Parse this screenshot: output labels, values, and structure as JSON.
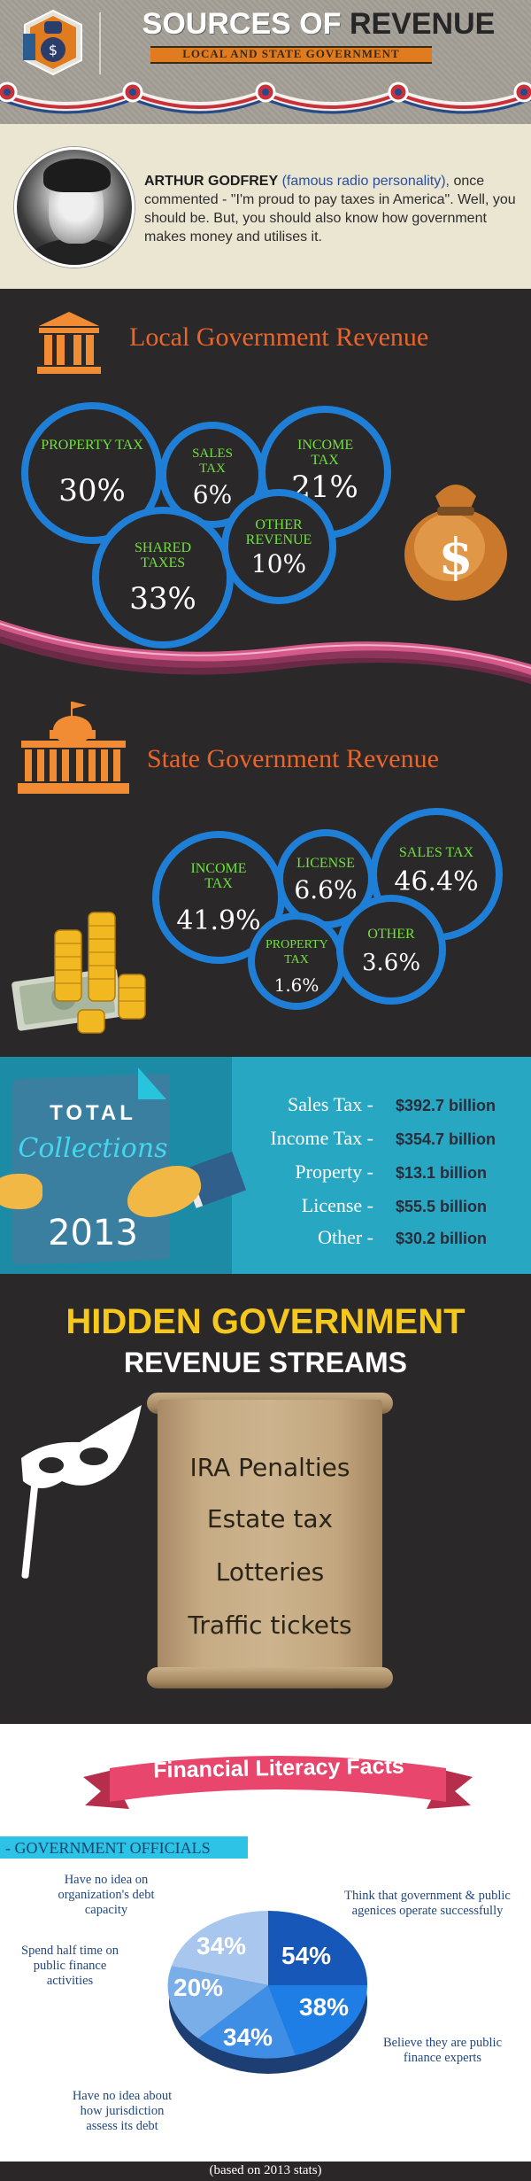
{
  "header": {
    "title_part1": "SOURCES OF",
    "title_part2": "REVENUE",
    "subtitle": "LOCAL AND STATE GOVERNMENT",
    "logo_icon": "dollar-hand-icon"
  },
  "quote": {
    "name": "ARTHUR GODFREY",
    "role": "(famous radio personality),",
    "text": "once commented - \"I'm proud to pay taxes in America\". Well, you should be. But, you should also know how government makes money and utilises it."
  },
  "local": {
    "title": "Local Government Revenue",
    "icon": "courthouse-icon",
    "items": [
      {
        "label": "PROPERTY TAX",
        "value": "30%"
      },
      {
        "label": "SALES TAX",
        "value": "6%"
      },
      {
        "label": "INCOME TAX",
        "value": "21%"
      },
      {
        "label": "SHARED TAXES",
        "value": "33%"
      },
      {
        "label": "OTHER REVENUE",
        "value": "10%"
      }
    ]
  },
  "state": {
    "title": "State Government Revenue",
    "icon": "capitol-building-icon",
    "items": [
      {
        "label": "INCOME TAX",
        "value": "41.9%"
      },
      {
        "label": "LICENSE",
        "value": "6.6%"
      },
      {
        "label": "SALES TAX",
        "value": "46.4%"
      },
      {
        "label": "PROPERTY TAX",
        "value": "1.6%"
      },
      {
        "label": "OTHER",
        "value": "3.6%"
      }
    ]
  },
  "total": {
    "word1": "TOTAL",
    "word2": "Collections",
    "year": "2013",
    "rows": [
      {
        "label": "Sales Tax -",
        "value": "$392.7 billion"
      },
      {
        "label": "Income Tax -",
        "value": "$354.7 billion"
      },
      {
        "label": "Property -",
        "value": "$13.1 billion"
      },
      {
        "label": "License -",
        "value": "$55.5 billion"
      },
      {
        "label": "Other -",
        "value": "$30.2 billion"
      }
    ]
  },
  "hidden": {
    "title": "HIDDEN GOVERNMENT",
    "subtitle": "REVENUE STREAMS",
    "items": [
      "IRA Penalties",
      "Estate tax",
      "Lotteries",
      "Traffic tickets"
    ]
  },
  "facts": {
    "title": "Financial Literacy Facts",
    "section_label": "- GOVERNMENT OFFICIALS",
    "notes": {
      "debt_capacity": "Have no idea on organization's debt capacity",
      "half_time": "Spend half time on public finance activities",
      "jurisdiction": "Have no idea about how jurisdiction assess its debt",
      "operate": "Think that government & public agenices operate successfully",
      "experts": "Believe they are public finance experts"
    },
    "pie_labels": [
      "34%",
      "54%",
      "20%",
      "38%",
      "34%"
    ],
    "footer": "(based on 2013 stats)"
  },
  "colors": {
    "bubble_border": "#1f7fd6",
    "label_green": "#6fe13c",
    "section_orange": "#e9652b",
    "hidden_yellow": "#f6c71c",
    "ribbon_pink": "#e8466c"
  }
}
